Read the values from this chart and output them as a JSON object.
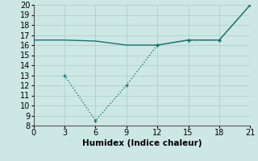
{
  "line1_x": [
    0,
    3,
    6,
    9,
    12,
    15,
    18,
    21
  ],
  "line1_y": [
    16.5,
    16.5,
    16.4,
    16.0,
    16.0,
    16.5,
    16.5,
    20.0
  ],
  "line2_x": [
    3,
    6,
    9,
    12,
    15,
    18,
    21
  ],
  "line2_y": [
    13.0,
    8.5,
    12.0,
    16.0,
    16.5,
    16.5,
    20.0
  ],
  "color": "#1a7070",
  "bg_color": "#cde8e4",
  "grid_color": "#afd4cf",
  "xlabel": "Humidex (Indice chaleur)",
  "xlim": [
    0,
    21
  ],
  "ylim": [
    8,
    20
  ],
  "xticks": [
    0,
    3,
    6,
    9,
    12,
    15,
    18,
    21
  ],
  "yticks": [
    8,
    9,
    10,
    11,
    12,
    13,
    14,
    15,
    16,
    17,
    18,
    19,
    20
  ],
  "xlabel_fontsize": 7.5,
  "tick_fontsize": 7
}
